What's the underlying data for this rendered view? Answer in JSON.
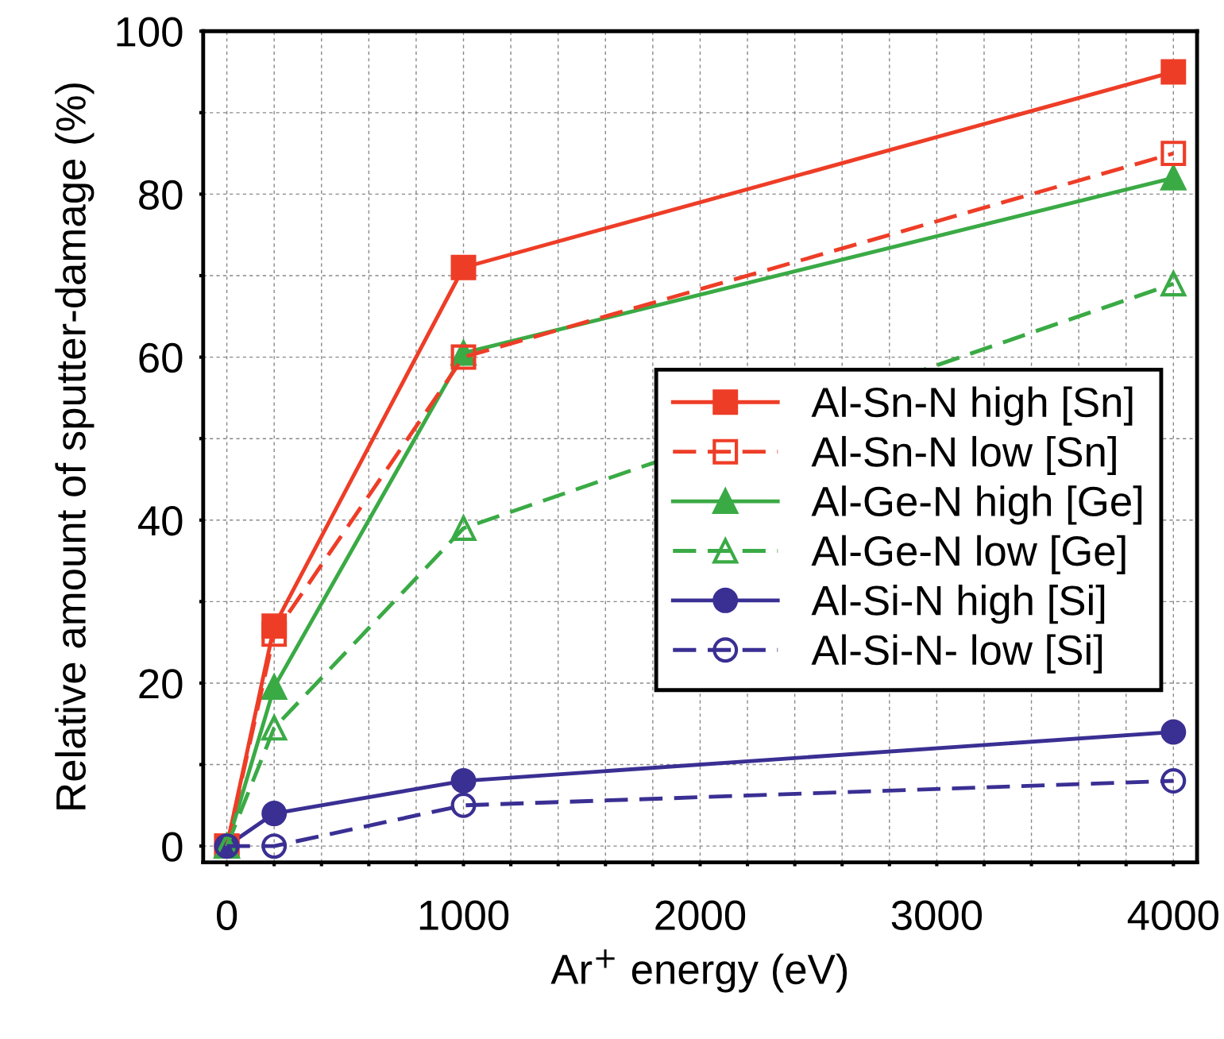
{
  "chart_data": {
    "type": "line",
    "xlabel": "Ar$^{+}$ energy (eV)",
    "ylabel": "Relative amount of sputter-damage (%)",
    "x": [
      0,
      200,
      1000,
      4000
    ],
    "series": [
      {
        "name": "Al-Sn-N high [Sn]",
        "color": "#ee3d27",
        "marker": "square",
        "line_style": "solid",
        "values": [
          0,
          27,
          71,
          95
        ]
      },
      {
        "name": "Al-Sn-N low [Sn]",
        "color": "#ee3d27",
        "marker": "square",
        "line_style": "dashed",
        "values": [
          0,
          26,
          60,
          85
        ]
      },
      {
        "name": "Al-Ge-N high [Ge]",
        "color": "#3aaa45",
        "marker": "triangle",
        "line_style": "solid",
        "values": [
          0,
          19.5,
          60.5,
          82
        ]
      },
      {
        "name": "Al-Ge-N low [Ge]",
        "color": "#3aaa45",
        "marker": "triangle",
        "line_style": "dashed",
        "values": [
          0,
          14.5,
          39,
          69
        ]
      },
      {
        "name": "Al-Si-N high [Si]",
        "color": "#3a2f93",
        "marker": "circle",
        "line_style": "solid",
        "values": [
          0,
          4,
          8,
          14
        ]
      },
      {
        "name": "Al-Si-N- low [Si]",
        "color": "#3a2f93",
        "marker": "circle",
        "line_style": "dashed",
        "values": [
          0,
          0,
          5,
          8
        ]
      }
    ],
    "xlim": [
      -100,
      4100
    ],
    "ylim": [
      -2,
      100
    ],
    "xticks": [
      0,
      {
        "value": 200,
        "label": null
      },
      {
        "value": 400,
        "label": null
      },
      {
        "value": 600,
        "label": null
      },
      {
        "value": 800,
        "label": null
      },
      1000,
      {
        "value": 1200,
        "label": null
      },
      {
        "value": 1400,
        "label": null
      },
      {
        "value": 1600,
        "label": null
      },
      {
        "value": 1800,
        "label": null
      },
      2000,
      {
        "value": 2200,
        "label": null
      },
      {
        "value": 2400,
        "label": null
      },
      {
        "value": 2600,
        "label": null
      },
      {
        "value": 2800,
        "label": null
      },
      3000,
      {
        "value": 3200,
        "label": null
      },
      {
        "value": 3400,
        "label": null
      },
      {
        "value": 3600,
        "label": null
      },
      {
        "value": 3800,
        "label": null
      },
      4000
    ],
    "yticks": [
      0,
      {
        "value": 10,
        "label": null
      },
      20,
      {
        "value": 30,
        "label": null
      },
      40,
      {
        "value": 50,
        "label": null
      },
      60,
      {
        "value": 70,
        "label": null
      },
      80,
      {
        "value": 90,
        "label": null
      },
      100
    ],
    "grid": true,
    "legend": "right"
  }
}
